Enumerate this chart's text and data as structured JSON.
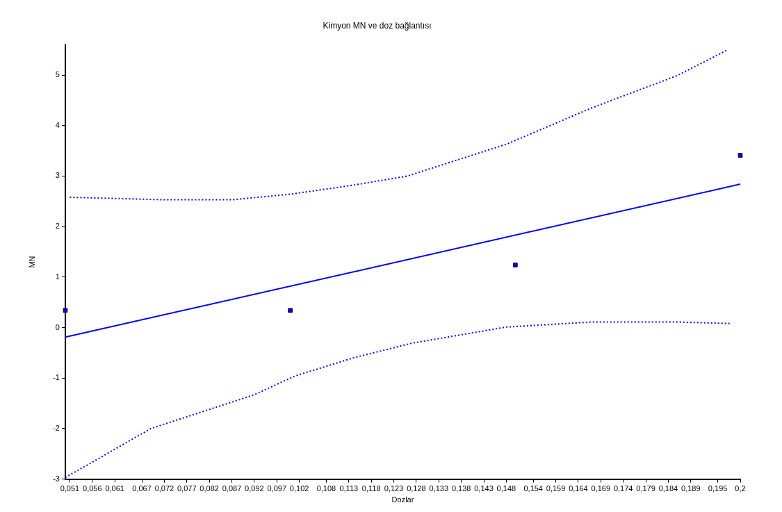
{
  "chart_data": {
    "type": "scatter",
    "title": "Kimyon MN ve doz bağlantısı",
    "xlabel": "Dozlar",
    "ylabel": "MN",
    "xlim": [
      0.05,
      0.2
    ],
    "ylim": [
      -3,
      5.6
    ],
    "yticks": [
      -3,
      -2,
      -1,
      0,
      1,
      2,
      3,
      4,
      5
    ],
    "xticks": [
      {
        "value": 0.051,
        "label": "0,051"
      },
      {
        "value": 0.056,
        "label": "0,056"
      },
      {
        "value": 0.061,
        "label": "0,061"
      },
      {
        "value": 0.067,
        "label": "0,067"
      },
      {
        "value": 0.072,
        "label": "0,072"
      },
      {
        "value": 0.077,
        "label": "0,077"
      },
      {
        "value": 0.082,
        "label": "0,082"
      },
      {
        "value": 0.087,
        "label": "0,087"
      },
      {
        "value": 0.092,
        "label": "0,092"
      },
      {
        "value": 0.097,
        "label": "0,097"
      },
      {
        "value": 0.102,
        "label": "0,102"
      },
      {
        "value": 0.108,
        "label": "0,108"
      },
      {
        "value": 0.113,
        "label": "0,113"
      },
      {
        "value": 0.118,
        "label": "0,118"
      },
      {
        "value": 0.123,
        "label": "0,123"
      },
      {
        "value": 0.128,
        "label": "0,128"
      },
      {
        "value": 0.133,
        "label": "0,133"
      },
      {
        "value": 0.138,
        "label": "0,138"
      },
      {
        "value": 0.143,
        "label": "0,143"
      },
      {
        "value": 0.148,
        "label": "0,148"
      },
      {
        "value": 0.154,
        "label": "0,154"
      },
      {
        "value": 0.159,
        "label": "0,159"
      },
      {
        "value": 0.164,
        "label": "0,164"
      },
      {
        "value": 0.169,
        "label": "0,169"
      },
      {
        "value": 0.174,
        "label": "0,174"
      },
      {
        "value": 0.179,
        "label": "0,179"
      },
      {
        "value": 0.184,
        "label": "0,184"
      },
      {
        "value": 0.189,
        "label": "0,189"
      },
      {
        "value": 0.195,
        "label": "0,195"
      },
      {
        "value": 0.2,
        "label": "0,2"
      }
    ],
    "grid": false,
    "legend": false,
    "series": [
      {
        "type": "line",
        "color": "#0000ff",
        "line_style": "dotted",
        "marker": "none",
        "x": [
          0.051,
          0.072,
          0.087,
          0.1,
          0.114,
          0.126,
          0.148,
          0.167,
          0.186,
          0.197
        ],
        "values": [
          2.58,
          2.53,
          2.53,
          2.64,
          2.82,
          3.0,
          3.63,
          4.35,
          4.99,
          5.49
        ]
      },
      {
        "type": "line",
        "color": "#0000ff",
        "line_style": "dotted",
        "marker": "none",
        "x": [
          0.05,
          0.069,
          0.092,
          0.101,
          0.114,
          0.127,
          0.148,
          0.167,
          0.186,
          0.198
        ],
        "values": [
          -2.97,
          -2.0,
          -1.33,
          -0.96,
          -0.6,
          -0.31,
          0.01,
          0.11,
          0.11,
          0.08
        ]
      },
      {
        "type": "line",
        "color": "#0000ff",
        "line_style": "solid",
        "marker": "none",
        "x": [
          0.05,
          0.2
        ],
        "values": [
          -0.19,
          2.84
        ]
      },
      {
        "type": "scatter",
        "color": "#0000ff",
        "marker": "square",
        "x": [
          0.05,
          0.1,
          0.15,
          0.2
        ],
        "values": [
          0.34,
          0.34,
          1.24,
          3.41
        ]
      }
    ]
  }
}
